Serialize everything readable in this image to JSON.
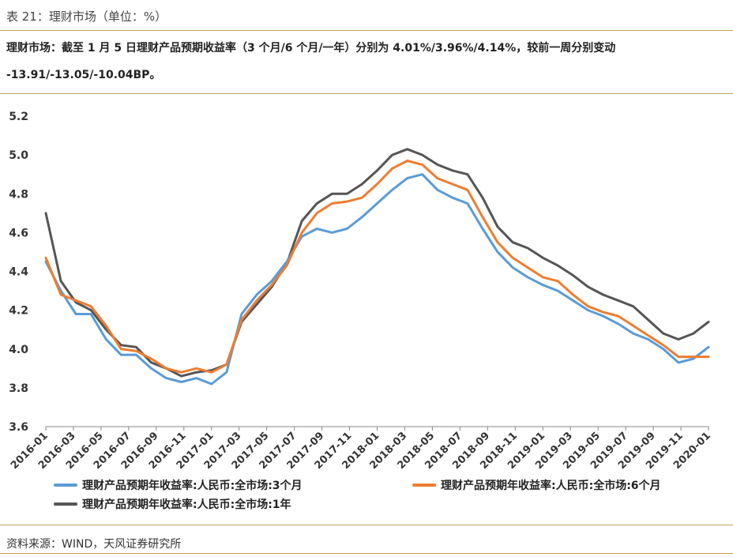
{
  "header": {
    "title": "表 21：理财市场（单位：%）",
    "summary_line1": "理财市场：截至 1 月 5 日理财产品预期收益率（3 个月/6 个月/一年）分别为 4.01%/3.96%/4.14%，较前一周分别变动",
    "summary_line2": "-13.91/-13.05/-10.04BP。"
  },
  "footer": {
    "source": "资料来源：WIND，天风证券研究所"
  },
  "colors": {
    "s3m": "#5b9bd5",
    "s6m": "#ed7d31",
    "s1y": "#555555",
    "rule": "#c9a45c"
  },
  "chart_data": {
    "type": "line",
    "title": "",
    "xlabel": "",
    "ylabel": "",
    "ylim": [
      3.6,
      5.2
    ],
    "yticks": [
      "5.2",
      "5.0",
      "4.8",
      "4.6",
      "4.4",
      "4.2",
      "4.0",
      "3.8",
      "3.6"
    ],
    "xticks": [
      "2016-01",
      "2016-03",
      "2016-05",
      "2016-07",
      "2016-09",
      "2016-11",
      "2017-01",
      "2017-03",
      "2017-05",
      "2017-07",
      "2017-09",
      "2017-11",
      "2018-01",
      "2018-03",
      "2018-05",
      "2018-07",
      "2018-09",
      "2018-11",
      "2019-01",
      "2019-03",
      "2019-05",
      "2019-07",
      "2019-09",
      "2019-11",
      "2020-01"
    ],
    "grid": false,
    "legend_position": "bottom",
    "x_unit": "month index from 2016-01 (monthly)",
    "series": [
      {
        "name": "理财产品预期年收益率:人民币:全市场:3个月",
        "values": [
          4.45,
          4.3,
          4.18,
          4.18,
          4.05,
          3.97,
          3.97,
          3.9,
          3.85,
          3.83,
          3.85,
          3.82,
          3.88,
          4.18,
          4.28,
          4.35,
          4.45,
          4.58,
          4.62,
          4.6,
          4.62,
          4.68,
          4.75,
          4.82,
          4.88,
          4.9,
          4.82,
          4.78,
          4.75,
          4.62,
          4.5,
          4.42,
          4.37,
          4.33,
          4.3,
          4.25,
          4.2,
          4.17,
          4.13,
          4.08,
          4.05,
          4.0,
          3.93,
          3.95,
          4.01
        ]
      },
      {
        "name": "理财产品预期年收益率:人民币:全市场:6个月",
        "values": [
          4.47,
          4.28,
          4.25,
          4.22,
          4.12,
          4.0,
          3.99,
          3.95,
          3.9,
          3.88,
          3.9,
          3.88,
          3.92,
          4.15,
          4.25,
          4.33,
          4.43,
          4.6,
          4.7,
          4.75,
          4.76,
          4.78,
          4.85,
          4.93,
          4.97,
          4.95,
          4.88,
          4.85,
          4.82,
          4.68,
          4.55,
          4.47,
          4.42,
          4.37,
          4.35,
          4.28,
          4.22,
          4.19,
          4.17,
          4.12,
          4.07,
          4.02,
          3.96,
          3.96,
          3.96
        ]
      },
      {
        "name": "理财产品预期年收益率:人民币:全市场:1年",
        "values": [
          4.7,
          4.35,
          4.24,
          4.2,
          4.1,
          4.02,
          4.01,
          3.93,
          3.9,
          3.86,
          3.88,
          3.89,
          3.92,
          4.14,
          4.23,
          4.32,
          4.44,
          4.66,
          4.75,
          4.8,
          4.8,
          4.85,
          4.92,
          5.0,
          5.03,
          5.0,
          4.95,
          4.92,
          4.9,
          4.78,
          4.63,
          4.55,
          4.52,
          4.47,
          4.43,
          4.38,
          4.32,
          4.28,
          4.25,
          4.22,
          4.15,
          4.08,
          4.05,
          4.08,
          4.14
        ]
      }
    ]
  }
}
